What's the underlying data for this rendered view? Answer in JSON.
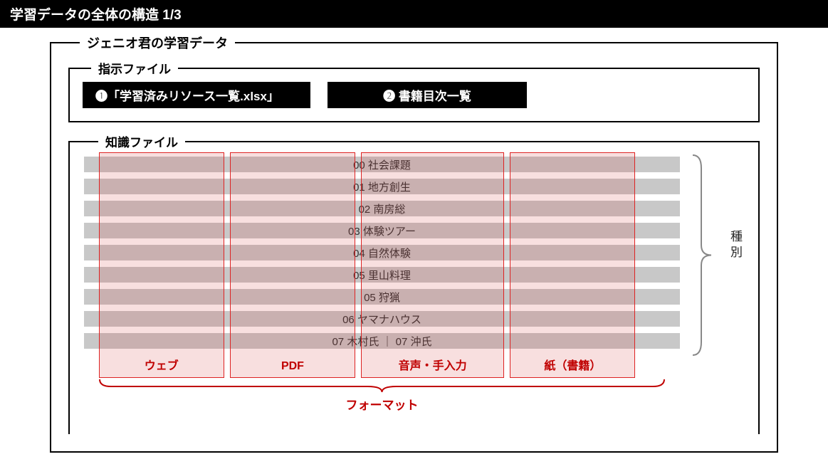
{
  "header": {
    "title": "学習データの全体の構造 1/3"
  },
  "outer": {
    "legend": "ジェニオ君の学習データ"
  },
  "instruction": {
    "legend": "指示ファイル",
    "items": [
      {
        "label": "❶「学習済みリソース一覧.xlsx」"
      },
      {
        "label": "❷ 書籍目次一覧"
      }
    ]
  },
  "knowledge": {
    "legend": "知識ファイル",
    "rows": [
      "00 社会課題",
      "01 地方創生",
      "02 南房総",
      "03 体験ツアー",
      "04 自然体験",
      "05 里山料理",
      "05 狩猟",
      "06 ヤマナハウス",
      "07 木村氏 ｜ 07 沖氏"
    ],
    "columns": [
      {
        "label": "ウェブ",
        "left_pct": 2.5,
        "width_pct": 21
      },
      {
        "label": "PDF",
        "left_pct": 24.5,
        "width_pct": 21
      },
      {
        "label": "音声・手入力",
        "left_pct": 46.5,
        "width_pct": 24
      },
      {
        "label": "紙（書籍）",
        "left_pct": 71.5,
        "width_pct": 21
      }
    ],
    "side_label": "種別",
    "bottom_label": "フォーマット"
  },
  "colors": {
    "header_bg": "#000000",
    "header_fg": "#ffffff",
    "band_bg": "#c8c8c8",
    "col_border": "#d22222",
    "col_fill": "rgba(210,40,40,0.15)",
    "red_text": "#c00000"
  }
}
